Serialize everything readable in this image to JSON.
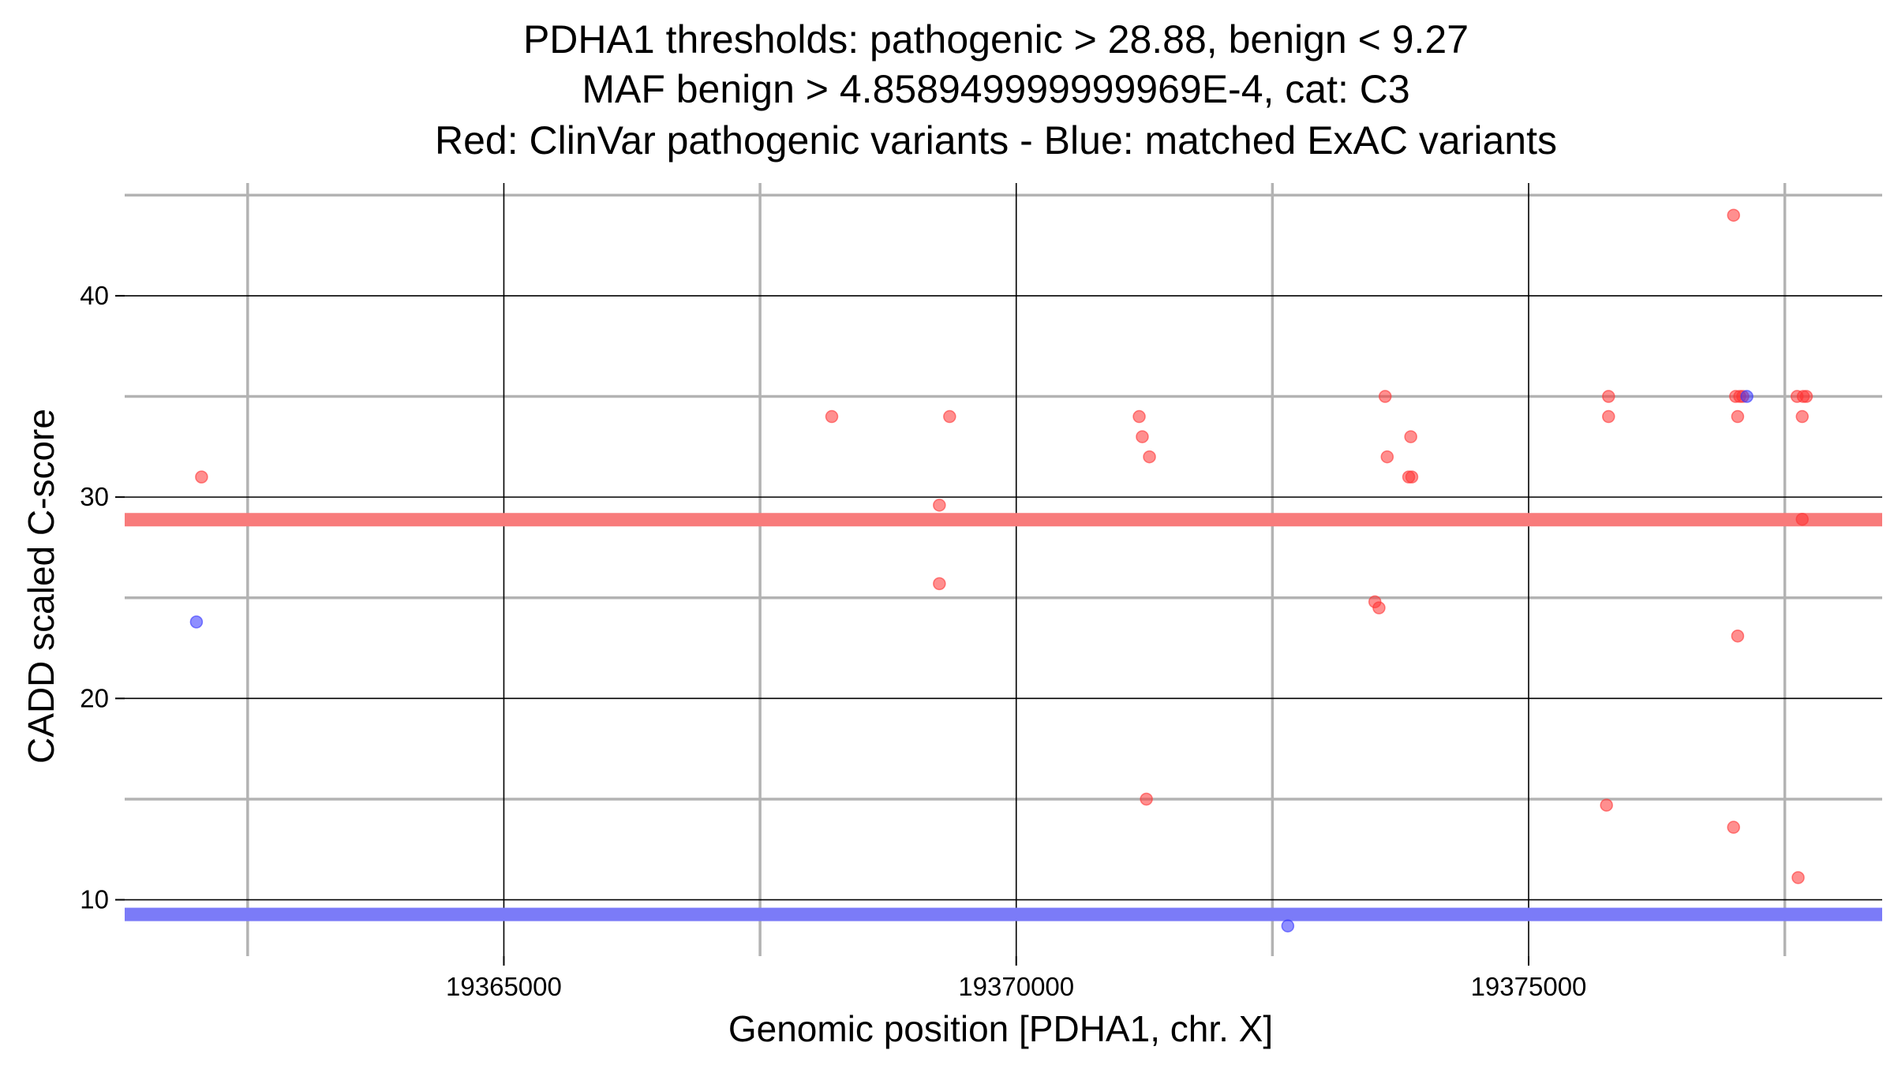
{
  "chart_data": {
    "type": "scatter",
    "title_lines": [
      "PDHA1 thresholds: pathogenic > 28.88, benign < 9.27",
      "MAF benign > 4.858949999999969E-4, cat: C3",
      "Red: ClinVar pathogenic variants - Blue: matched ExAC variants"
    ],
    "xlabel": "Genomic position [PDHA1, chr. X]",
    "ylabel": "CADD scaled C-score",
    "xlim": [
      19361300,
      19378450
    ],
    "ylim": [
      7.2,
      45.6
    ],
    "x_major_ticks": [
      19365000,
      19370000,
      19375000
    ],
    "x_tick_labels": [
      "19365000",
      "19370000",
      "19375000"
    ],
    "x_minor_gridlines": [
      19362500,
      19367500,
      19372500,
      19377500
    ],
    "y_major_ticks": [
      10,
      20,
      30,
      40
    ],
    "y_tick_labels": [
      "10",
      "20",
      "30",
      "40"
    ],
    "y_minor_gridlines": [
      15,
      25,
      35,
      45
    ],
    "grid": true,
    "thresholds": [
      {
        "name": "pathogenic",
        "value": 28.88,
        "color": "#f87b7b"
      },
      {
        "name": "benign",
        "value": 9.27,
        "color": "#7b7bf8"
      }
    ],
    "series": [
      {
        "color": "#ff3333",
        "points": [
          [
            19362050,
            31.0
          ],
          [
            19368200,
            34.0
          ],
          [
            19369350,
            34.0
          ],
          [
            19369250,
            29.6
          ],
          [
            19369250,
            25.7
          ],
          [
            19371200,
            34.0
          ],
          [
            19371230,
            33.0
          ],
          [
            19371300,
            32.0
          ],
          [
            19371270,
            15.0
          ],
          [
            19373600,
            35.0
          ],
          [
            19373620,
            32.0
          ],
          [
            19373850,
            33.0
          ],
          [
            19373830,
            31.0
          ],
          [
            19373860,
            31.0
          ],
          [
            19373500,
            24.8
          ],
          [
            19373540,
            24.5
          ],
          [
            19375780,
            35.0
          ],
          [
            19375780,
            34.0
          ],
          [
            19375760,
            14.7
          ],
          [
            19377000,
            44.0
          ],
          [
            19377020,
            35.0
          ],
          [
            19377060,
            35.0
          ],
          [
            19377090,
            35.0
          ],
          [
            19377040,
            34.0
          ],
          [
            19377040,
            23.1
          ],
          [
            19377000,
            13.6
          ],
          [
            19377620,
            35.0
          ],
          [
            19377680,
            35.0
          ],
          [
            19377710,
            35.0
          ],
          [
            19377670,
            34.0
          ],
          [
            19377670,
            28.9
          ],
          [
            19377630,
            11.1
          ]
        ]
      },
      {
        "color": "#3333ff",
        "points": [
          [
            19362000,
            23.8
          ],
          [
            19377130,
            35.0
          ],
          [
            19372650,
            8.7
          ]
        ]
      }
    ]
  }
}
